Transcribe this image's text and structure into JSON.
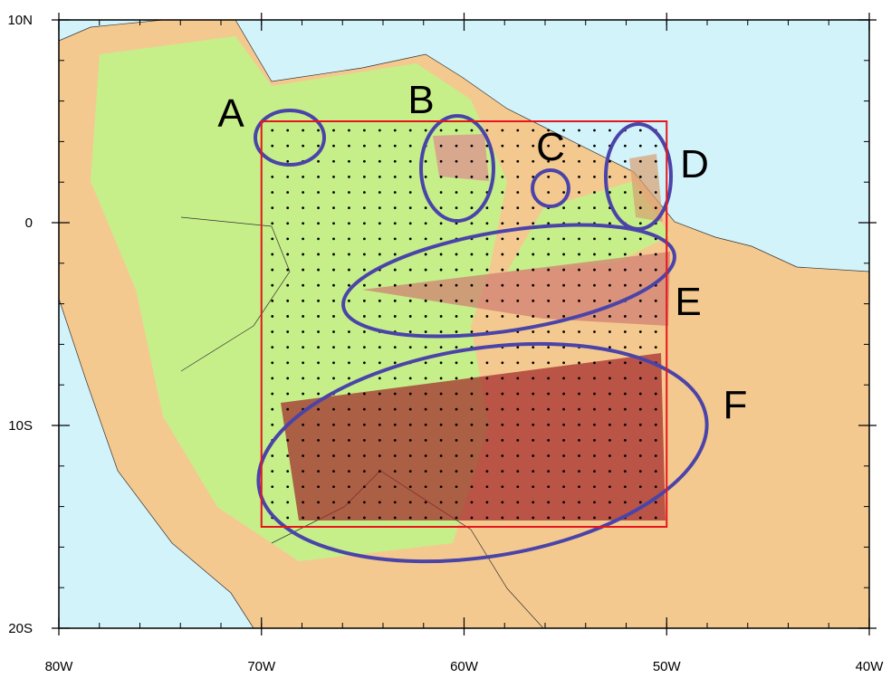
{
  "map": {
    "lon_range": [
      -80,
      -40
    ],
    "lat_range": [
      -20,
      10
    ],
    "lon_ticks": [
      {
        "value": -80,
        "label": "80W"
      },
      {
        "value": -70,
        "label": "70W"
      },
      {
        "value": -60,
        "label": "60W"
      },
      {
        "value": -50,
        "label": "50W"
      },
      {
        "value": -40,
        "label": "40W"
      }
    ],
    "lat_ticks": [
      {
        "value": 10,
        "label": "10N"
      },
      0,
      {
        "value": -10,
        "label": "10S"
      },
      {
        "value": -20,
        "label": "20S"
      }
    ],
    "domain": {
      "lon": [
        -70,
        -50
      ],
      "lat": [
        -15,
        5
      ]
    },
    "regions": [
      "A",
      "B",
      "C",
      "D",
      "E",
      "F"
    ]
  }
}
